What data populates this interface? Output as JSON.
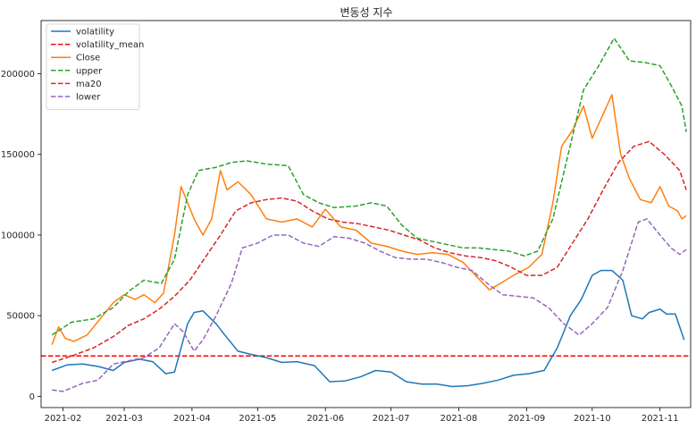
{
  "chart_data": {
    "type": "line",
    "title": "변동성 지수",
    "xlabel": "",
    "ylabel": "",
    "grid": false,
    "legend_placement": "top-left",
    "x_tick_labels": [
      "2021-02",
      "2021-03",
      "2021-04",
      "2021-05",
      "2021-06",
      "2021-07",
      "2021-08",
      "2021-09",
      "2021-10",
      "2021-11"
    ],
    "x_ticks": [
      "2021-02-01",
      "2021-03-01",
      "2021-04-01",
      "2021-05-01",
      "2021-06-01",
      "2021-07-01",
      "2021-08-01",
      "2021-09-01",
      "2021-10-01",
      "2021-11-01"
    ],
    "xlim": [
      "2021-01-22",
      "2021-11-15"
    ],
    "y_ticks": [
      0,
      50000,
      100000,
      150000,
      200000
    ],
    "y_tick_labels": [
      "0",
      "50000",
      "100000",
      "150000",
      "200000"
    ],
    "ylim": [
      -7000,
      233000
    ],
    "hline": {
      "y": 25000,
      "color": "#ff0000"
    },
    "series": [
      {
        "name": "volatility",
        "color": "#1f77b4",
        "dash": "solid",
        "points": [
          [
            "2021-01-27",
            16000
          ],
          [
            "2021-02-03",
            19500
          ],
          [
            "2021-02-10",
            20000
          ],
          [
            "2021-02-17",
            18500
          ],
          [
            "2021-02-24",
            16000
          ],
          [
            "2021-03-01",
            21000
          ],
          [
            "2021-03-08",
            23000
          ],
          [
            "2021-03-14",
            21500
          ],
          [
            "2021-03-20",
            14000
          ],
          [
            "2021-03-24",
            15000
          ],
          [
            "2021-03-27",
            30000
          ],
          [
            "2021-03-30",
            45000
          ],
          [
            "2021-04-02",
            52000
          ],
          [
            "2021-04-06",
            53000
          ],
          [
            "2021-04-12",
            45000
          ],
          [
            "2021-04-16",
            38000
          ],
          [
            "2021-04-22",
            28000
          ],
          [
            "2021-04-28",
            26000
          ],
          [
            "2021-05-05",
            24000
          ],
          [
            "2021-05-12",
            21000
          ],
          [
            "2021-05-19",
            21500
          ],
          [
            "2021-05-27",
            19000
          ],
          [
            "2021-06-03",
            9000
          ],
          [
            "2021-06-10",
            9500
          ],
          [
            "2021-06-17",
            12000
          ],
          [
            "2021-06-24",
            16000
          ],
          [
            "2021-07-01",
            15000
          ],
          [
            "2021-07-08",
            9000
          ],
          [
            "2021-07-15",
            7500
          ],
          [
            "2021-07-22",
            7500
          ],
          [
            "2021-07-29",
            6000
          ],
          [
            "2021-08-05",
            6500
          ],
          [
            "2021-08-12",
            8000
          ],
          [
            "2021-08-19",
            10000
          ],
          [
            "2021-08-26",
            13000
          ],
          [
            "2021-09-02",
            14000
          ],
          [
            "2021-09-09",
            16000
          ],
          [
            "2021-09-15",
            30000
          ],
          [
            "2021-09-21",
            50000
          ],
          [
            "2021-09-26",
            60000
          ],
          [
            "2021-10-01",
            75000
          ],
          [
            "2021-10-05",
            78000
          ],
          [
            "2021-10-10",
            78000
          ],
          [
            "2021-10-15",
            72000
          ],
          [
            "2021-10-19",
            50000
          ],
          [
            "2021-10-24",
            48000
          ],
          [
            "2021-10-27",
            52000
          ],
          [
            "2021-11-01",
            54000
          ],
          [
            "2021-11-04",
            51000
          ],
          [
            "2021-11-08",
            51000
          ],
          [
            "2021-11-12",
            35000
          ]
        ]
      },
      {
        "name": "volatility_mean",
        "color": "#ff0000",
        "dash": "dashed",
        "points": []
      },
      {
        "name": "Close",
        "color": "#ff7f0e",
        "dash": "solid",
        "points": [
          [
            "2021-01-27",
            32000
          ],
          [
            "2021-01-30",
            43000
          ],
          [
            "2021-02-02",
            36000
          ],
          [
            "2021-02-06",
            34000
          ],
          [
            "2021-02-12",
            38000
          ],
          [
            "2021-02-18",
            48000
          ],
          [
            "2021-02-24",
            58000
          ],
          [
            "2021-03-01",
            63000
          ],
          [
            "2021-03-06",
            60000
          ],
          [
            "2021-03-10",
            63000
          ],
          [
            "2021-03-15",
            58000
          ],
          [
            "2021-03-19",
            64000
          ],
          [
            "2021-03-24",
            100000
          ],
          [
            "2021-03-27",
            130000
          ],
          [
            "2021-03-30",
            120000
          ],
          [
            "2021-04-02",
            110000
          ],
          [
            "2021-04-06",
            100000
          ],
          [
            "2021-04-10",
            110000
          ],
          [
            "2021-04-14",
            140000
          ],
          [
            "2021-04-17",
            128000
          ],
          [
            "2021-04-22",
            133000
          ],
          [
            "2021-04-28",
            125000
          ],
          [
            "2021-05-05",
            110000
          ],
          [
            "2021-05-12",
            108000
          ],
          [
            "2021-05-19",
            110000
          ],
          [
            "2021-05-26",
            105000
          ],
          [
            "2021-06-01",
            116000
          ],
          [
            "2021-06-08",
            105000
          ],
          [
            "2021-06-15",
            103000
          ],
          [
            "2021-06-22",
            95000
          ],
          [
            "2021-06-29",
            93000
          ],
          [
            "2021-07-06",
            90000
          ],
          [
            "2021-07-13",
            88000
          ],
          [
            "2021-07-20",
            89000
          ],
          [
            "2021-07-27",
            88000
          ],
          [
            "2021-08-03",
            83000
          ],
          [
            "2021-08-10",
            73000
          ],
          [
            "2021-08-15",
            66000
          ],
          [
            "2021-08-20",
            70000
          ],
          [
            "2021-08-26",
            75000
          ],
          [
            "2021-09-02",
            80000
          ],
          [
            "2021-09-08",
            88000
          ],
          [
            "2021-09-13",
            120000
          ],
          [
            "2021-09-17",
            155000
          ],
          [
            "2021-09-22",
            165000
          ],
          [
            "2021-09-27",
            180000
          ],
          [
            "2021-10-01",
            160000
          ],
          [
            "2021-10-05",
            172000
          ],
          [
            "2021-10-10",
            187000
          ],
          [
            "2021-10-14",
            150000
          ],
          [
            "2021-10-18",
            135000
          ],
          [
            "2021-10-23",
            122000
          ],
          [
            "2021-10-28",
            120000
          ],
          [
            "2021-11-01",
            130000
          ],
          [
            "2021-11-05",
            118000
          ],
          [
            "2021-11-09",
            115000
          ],
          [
            "2021-11-11",
            110000
          ],
          [
            "2021-11-13",
            112000
          ]
        ]
      },
      {
        "name": "upper",
        "color": "#2ca02c",
        "dash": "dashed",
        "points": [
          [
            "2021-01-27",
            38000
          ],
          [
            "2021-02-05",
            46000
          ],
          [
            "2021-02-15",
            48000
          ],
          [
            "2021-02-24",
            55000
          ],
          [
            "2021-03-03",
            65000
          ],
          [
            "2021-03-10",
            72000
          ],
          [
            "2021-03-18",
            70000
          ],
          [
            "2021-03-24",
            85000
          ],
          [
            "2021-03-30",
            125000
          ],
          [
            "2021-04-04",
            140000
          ],
          [
            "2021-04-12",
            142000
          ],
          [
            "2021-04-19",
            145000
          ],
          [
            "2021-04-26",
            146000
          ],
          [
            "2021-05-05",
            144000
          ],
          [
            "2021-05-15",
            143000
          ],
          [
            "2021-05-22",
            125000
          ],
          [
            "2021-05-29",
            120000
          ],
          [
            "2021-06-05",
            117000
          ],
          [
            "2021-06-15",
            118000
          ],
          [
            "2021-06-22",
            120000
          ],
          [
            "2021-06-29",
            118000
          ],
          [
            "2021-07-06",
            106000
          ],
          [
            "2021-07-13",
            98000
          ],
          [
            "2021-07-20",
            96000
          ],
          [
            "2021-07-27",
            94000
          ],
          [
            "2021-08-03",
            92000
          ],
          [
            "2021-08-10",
            92000
          ],
          [
            "2021-08-17",
            91000
          ],
          [
            "2021-08-24",
            90000
          ],
          [
            "2021-08-31",
            87000
          ],
          [
            "2021-09-06",
            90000
          ],
          [
            "2021-09-13",
            110000
          ],
          [
            "2021-09-20",
            150000
          ],
          [
            "2021-09-27",
            190000
          ],
          [
            "2021-10-04",
            205000
          ],
          [
            "2021-10-11",
            222000
          ],
          [
            "2021-10-18",
            208000
          ],
          [
            "2021-10-25",
            207000
          ],
          [
            "2021-11-01",
            205000
          ],
          [
            "2021-11-06",
            193000
          ],
          [
            "2021-11-11",
            180000
          ],
          [
            "2021-11-13",
            164000
          ]
        ]
      },
      {
        "name": "ma20",
        "color": "#d62728",
        "dash": "dashed",
        "points": [
          [
            "2021-01-27",
            21000
          ],
          [
            "2021-02-05",
            25000
          ],
          [
            "2021-02-15",
            30000
          ],
          [
            "2021-02-24",
            37000
          ],
          [
            "2021-03-03",
            44000
          ],
          [
            "2021-03-10",
            48000
          ],
          [
            "2021-03-17",
            54000
          ],
          [
            "2021-03-24",
            62000
          ],
          [
            "2021-03-31",
            72000
          ],
          [
            "2021-04-07",
            86000
          ],
          [
            "2021-04-14",
            100000
          ],
          [
            "2021-04-21",
            115000
          ],
          [
            "2021-04-28",
            120000
          ],
          [
            "2021-05-05",
            122000
          ],
          [
            "2021-05-12",
            123000
          ],
          [
            "2021-05-19",
            121000
          ],
          [
            "2021-05-26",
            115000
          ],
          [
            "2021-06-02",
            110000
          ],
          [
            "2021-06-09",
            108000
          ],
          [
            "2021-06-16",
            107000
          ],
          [
            "2021-06-23",
            105000
          ],
          [
            "2021-06-30",
            103000
          ],
          [
            "2021-07-07",
            100000
          ],
          [
            "2021-07-14",
            97000
          ],
          [
            "2021-07-21",
            92000
          ],
          [
            "2021-07-28",
            89000
          ],
          [
            "2021-08-04",
            87000
          ],
          [
            "2021-08-11",
            86000
          ],
          [
            "2021-08-18",
            84000
          ],
          [
            "2021-08-25",
            80000
          ],
          [
            "2021-09-01",
            75000
          ],
          [
            "2021-09-08",
            75000
          ],
          [
            "2021-09-15",
            80000
          ],
          [
            "2021-09-22",
            95000
          ],
          [
            "2021-09-29",
            110000
          ],
          [
            "2021-10-06",
            128000
          ],
          [
            "2021-10-13",
            145000
          ],
          [
            "2021-10-20",
            155000
          ],
          [
            "2021-10-27",
            158000
          ],
          [
            "2021-11-03",
            150000
          ],
          [
            "2021-11-10",
            140000
          ],
          [
            "2021-11-13",
            128000
          ]
        ]
      },
      {
        "name": "lower",
        "color": "#9467bd",
        "dash": "dashed",
        "points": [
          [
            "2021-01-27",
            4000
          ],
          [
            "2021-02-01",
            3000
          ],
          [
            "2021-02-10",
            8000
          ],
          [
            "2021-02-17",
            10000
          ],
          [
            "2021-02-24",
            20000
          ],
          [
            "2021-03-03",
            22000
          ],
          [
            "2021-03-10",
            24000
          ],
          [
            "2021-03-17",
            30000
          ],
          [
            "2021-03-24",
            45000
          ],
          [
            "2021-03-28",
            40000
          ],
          [
            "2021-04-02",
            28000
          ],
          [
            "2021-04-06",
            35000
          ],
          [
            "2021-04-12",
            50000
          ],
          [
            "2021-04-19",
            70000
          ],
          [
            "2021-04-24",
            92000
          ],
          [
            "2021-05-01",
            95000
          ],
          [
            "2021-05-08",
            100000
          ],
          [
            "2021-05-15",
            100000
          ],
          [
            "2021-05-22",
            95000
          ],
          [
            "2021-05-29",
            93000
          ],
          [
            "2021-06-05",
            99000
          ],
          [
            "2021-06-12",
            98000
          ],
          [
            "2021-06-19",
            95000
          ],
          [
            "2021-06-26",
            90000
          ],
          [
            "2021-07-03",
            86000
          ],
          [
            "2021-07-10",
            85000
          ],
          [
            "2021-07-17",
            85000
          ],
          [
            "2021-07-24",
            83000
          ],
          [
            "2021-07-31",
            80000
          ],
          [
            "2021-08-07",
            78000
          ],
          [
            "2021-08-14",
            70000
          ],
          [
            "2021-08-21",
            63000
          ],
          [
            "2021-08-28",
            62000
          ],
          [
            "2021-09-04",
            61000
          ],
          [
            "2021-09-11",
            55000
          ],
          [
            "2021-09-18",
            45000
          ],
          [
            "2021-09-25",
            38000
          ],
          [
            "2021-10-01",
            45000
          ],
          [
            "2021-10-08",
            55000
          ],
          [
            "2021-10-15",
            78000
          ],
          [
            "2021-10-22",
            108000
          ],
          [
            "2021-10-26",
            110000
          ],
          [
            "2021-11-01",
            100000
          ],
          [
            "2021-11-06",
            92000
          ],
          [
            "2021-11-10",
            88000
          ],
          [
            "2021-11-13",
            91000
          ]
        ]
      }
    ]
  }
}
